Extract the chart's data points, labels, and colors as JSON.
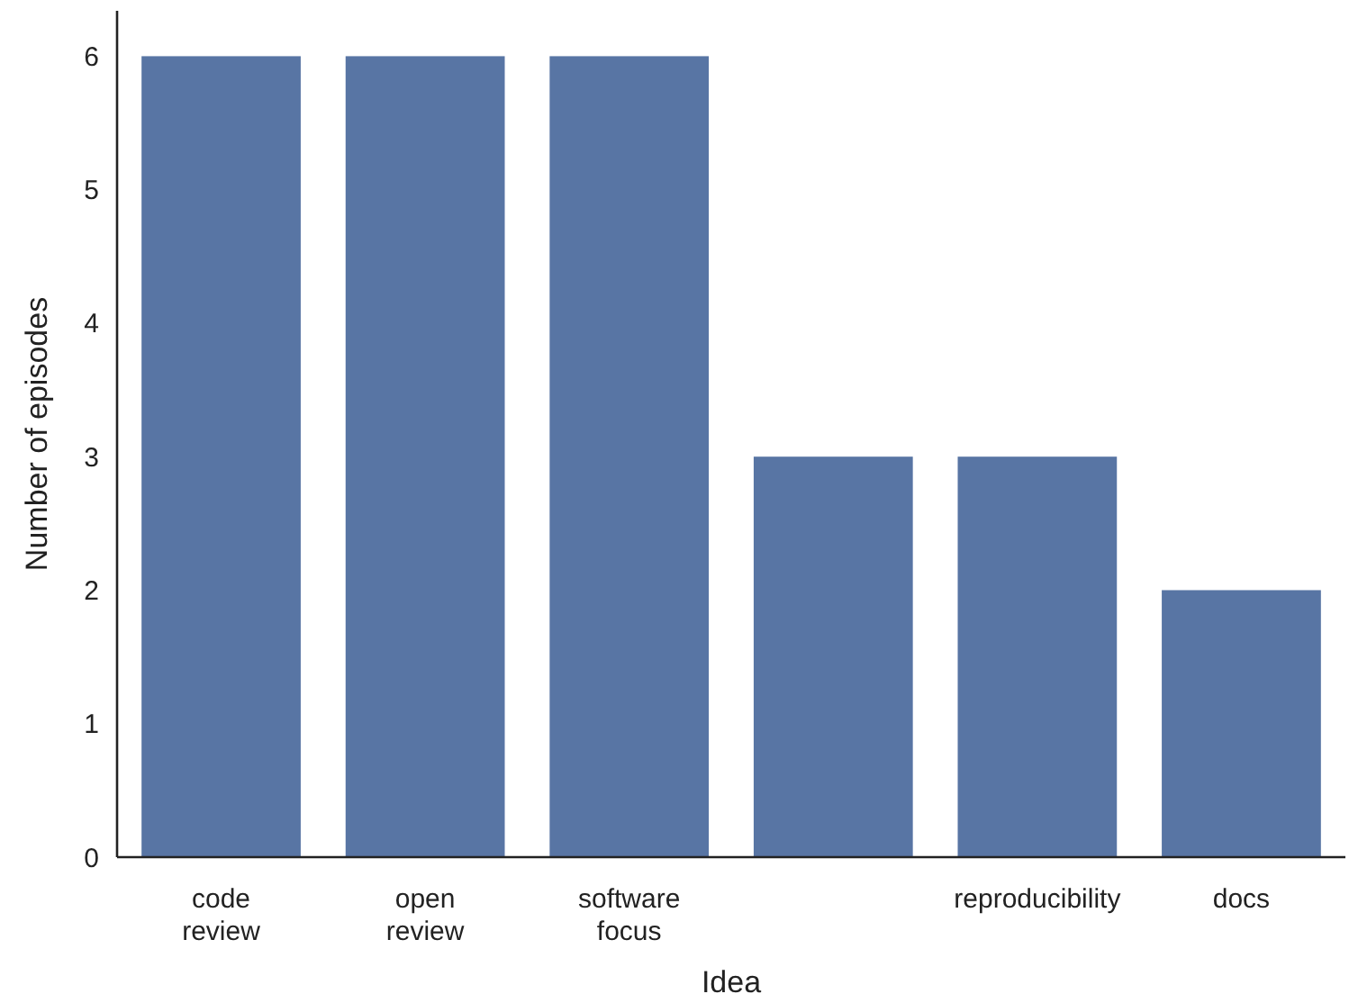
{
  "chart_data": {
    "type": "bar",
    "xlabel": "Idea",
    "ylabel": "Number of episodes",
    "categories": [
      "code review",
      "open review",
      "software focus",
      null,
      "reproducibility",
      "docs"
    ],
    "values": [
      6,
      6,
      6,
      3,
      3,
      2
    ],
    "color": "#5875a4",
    "ylim": [
      0,
      6.34
    ],
    "yticks": [
      0,
      1,
      2,
      3,
      4,
      5,
      6
    ],
    "grid": false
  }
}
